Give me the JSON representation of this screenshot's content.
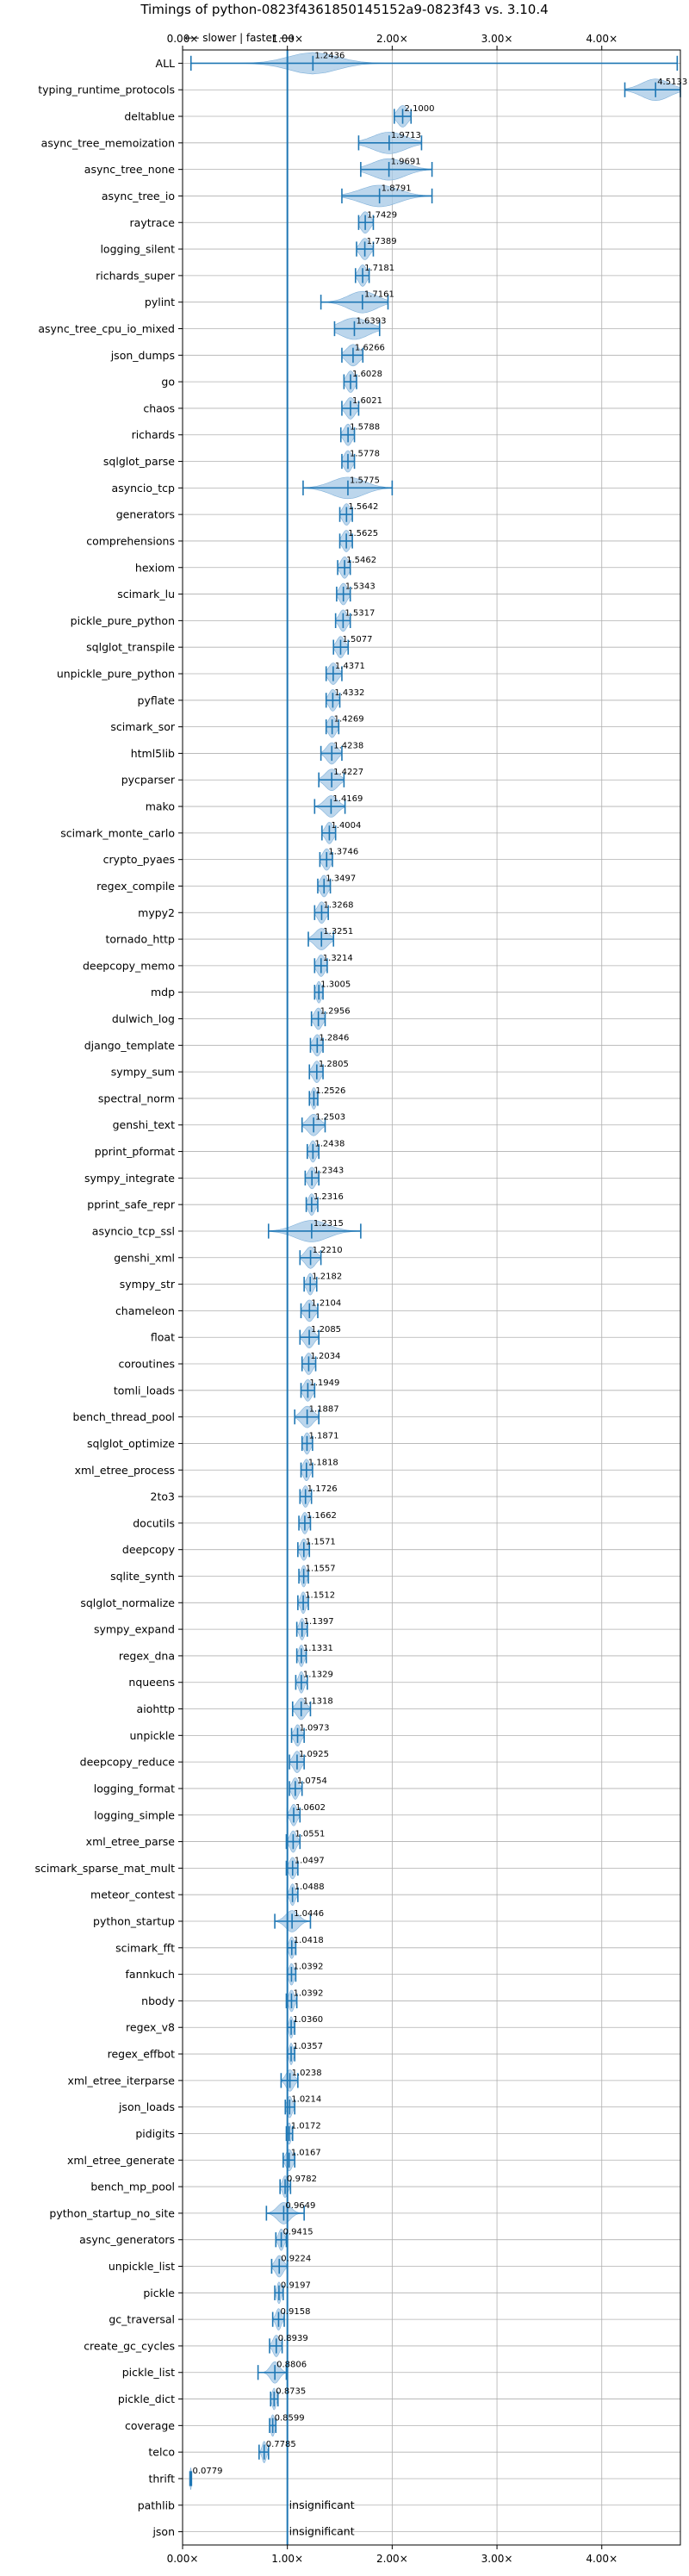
{
  "chart_data": {
    "type": "violin",
    "title": "Timings of python-0823f4361850145152a9-0823f43 vs. 3.10.4",
    "direction_label": "⟵ slower | faster ⟶",
    "xlim": [
      0,
      4.75
    ],
    "xticks": [
      0,
      1,
      2,
      3,
      4
    ],
    "xtick_labels": [
      "0.00×",
      "1.00×",
      "2.00×",
      "3.00×",
      "4.00×"
    ],
    "reference_line": 1.0,
    "grid": true,
    "benchmarks": [
      {
        "name": "ALL",
        "value": 1.2436,
        "label": "1.2436",
        "min": 0.08,
        "max": 4.72,
        "spread": 0.38
      },
      {
        "name": "typing_runtime_protocols",
        "value": 4.5133,
        "label": "4.5133",
        "min": 4.22,
        "max": 4.75,
        "spread": 0.22
      },
      {
        "name": "deltablue",
        "value": 2.1,
        "label": "2.1000",
        "min": 2.02,
        "max": 2.18,
        "spread": 0.08
      },
      {
        "name": "async_tree_memoization",
        "value": 1.9713,
        "label": "1.9713",
        "min": 1.68,
        "max": 2.28,
        "spread": 0.26
      },
      {
        "name": "async_tree_none",
        "value": 1.9691,
        "label": "1.9691",
        "min": 1.7,
        "max": 2.38,
        "spread": 0.26
      },
      {
        "name": "async_tree_io",
        "value": 1.8791,
        "label": "1.8791",
        "min": 1.52,
        "max": 2.38,
        "spread": 0.3
      },
      {
        "name": "raytrace",
        "value": 1.7429,
        "label": "1.7429",
        "min": 1.68,
        "max": 1.82,
        "spread": 0.07
      },
      {
        "name": "logging_silent",
        "value": 1.7389,
        "label": "1.7389",
        "min": 1.66,
        "max": 1.82,
        "spread": 0.07
      },
      {
        "name": "richards_super",
        "value": 1.7181,
        "label": "1.7181",
        "min": 1.65,
        "max": 1.78,
        "spread": 0.06
      },
      {
        "name": "pylint",
        "value": 1.7161,
        "label": "1.7161",
        "min": 1.32,
        "max": 1.96,
        "spread": 0.22
      },
      {
        "name": "async_tree_cpu_io_mixed",
        "value": 1.6393,
        "label": "1.6393",
        "min": 1.45,
        "max": 1.88,
        "spread": 0.22
      },
      {
        "name": "json_dumps",
        "value": 1.6266,
        "label": "1.6266",
        "min": 1.52,
        "max": 1.72,
        "spread": 0.1
      },
      {
        "name": "go",
        "value": 1.6028,
        "label": "1.6028",
        "min": 1.54,
        "max": 1.66,
        "spread": 0.06
      },
      {
        "name": "chaos",
        "value": 1.6021,
        "label": "1.6021",
        "min": 1.52,
        "max": 1.68,
        "spread": 0.07
      },
      {
        "name": "richards",
        "value": 1.5788,
        "label": "1.5788",
        "min": 1.51,
        "max": 1.64,
        "spread": 0.06
      },
      {
        "name": "sqlglot_parse",
        "value": 1.5778,
        "label": "1.5778",
        "min": 1.52,
        "max": 1.64,
        "spread": 0.06
      },
      {
        "name": "asyncio_tcp",
        "value": 1.5775,
        "label": "1.5775",
        "min": 1.15,
        "max": 2.0,
        "spread": 0.26
      },
      {
        "name": "generators",
        "value": 1.5642,
        "label": "1.5642",
        "min": 1.5,
        "max": 1.62,
        "spread": 0.06
      },
      {
        "name": "comprehensions",
        "value": 1.5625,
        "label": "1.5625",
        "min": 1.5,
        "max": 1.62,
        "spread": 0.06
      },
      {
        "name": "hexiom",
        "value": 1.5462,
        "label": "1.5462",
        "min": 1.48,
        "max": 1.6,
        "spread": 0.06
      },
      {
        "name": "scimark_lu",
        "value": 1.5343,
        "label": "1.5343",
        "min": 1.47,
        "max": 1.6,
        "spread": 0.06
      },
      {
        "name": "pickle_pure_python",
        "value": 1.5317,
        "label": "1.5317",
        "min": 1.46,
        "max": 1.6,
        "spread": 0.06
      },
      {
        "name": "sqlglot_transpile",
        "value": 1.5077,
        "label": "1.5077",
        "min": 1.44,
        "max": 1.58,
        "spread": 0.06
      },
      {
        "name": "unpickle_pure_python",
        "value": 1.4371,
        "label": "1.4371",
        "min": 1.37,
        "max": 1.52,
        "spread": 0.07
      },
      {
        "name": "pyflate",
        "value": 1.4332,
        "label": "1.4332",
        "min": 1.37,
        "max": 1.5,
        "spread": 0.06
      },
      {
        "name": "scimark_sor",
        "value": 1.4269,
        "label": "1.4269",
        "min": 1.37,
        "max": 1.49,
        "spread": 0.06
      },
      {
        "name": "html5lib",
        "value": 1.4238,
        "label": "1.4238",
        "min": 1.32,
        "max": 1.52,
        "spread": 0.08
      },
      {
        "name": "pycparser",
        "value": 1.4227,
        "label": "1.4227",
        "min": 1.3,
        "max": 1.54,
        "spread": 0.1
      },
      {
        "name": "mako",
        "value": 1.4169,
        "label": "1.4169",
        "min": 1.26,
        "max": 1.55,
        "spread": 0.1
      },
      {
        "name": "scimark_monte_carlo",
        "value": 1.4004,
        "label": "1.4004",
        "min": 1.33,
        "max": 1.46,
        "spread": 0.06
      },
      {
        "name": "crypto_pyaes",
        "value": 1.3746,
        "label": "1.3746",
        "min": 1.31,
        "max": 1.43,
        "spread": 0.06
      },
      {
        "name": "regex_compile",
        "value": 1.3497,
        "label": "1.3497",
        "min": 1.29,
        "max": 1.41,
        "spread": 0.06
      },
      {
        "name": "mypy2",
        "value": 1.3268,
        "label": "1.3268",
        "min": 1.26,
        "max": 1.39,
        "spread": 0.06
      },
      {
        "name": "tornado_http",
        "value": 1.3251,
        "label": "1.3251",
        "min": 1.2,
        "max": 1.44,
        "spread": 0.1
      },
      {
        "name": "deepcopy_memo",
        "value": 1.3214,
        "label": "1.3214",
        "min": 1.26,
        "max": 1.38,
        "spread": 0.06
      },
      {
        "name": "mdp",
        "value": 1.3005,
        "label": "1.3005",
        "min": 1.26,
        "max": 1.34,
        "spread": 0.04
      },
      {
        "name": "dulwich_log",
        "value": 1.2956,
        "label": "1.2956",
        "min": 1.23,
        "max": 1.36,
        "spread": 0.06
      },
      {
        "name": "django_template",
        "value": 1.2846,
        "label": "1.2846",
        "min": 1.22,
        "max": 1.34,
        "spread": 0.06
      },
      {
        "name": "sympy_sum",
        "value": 1.2805,
        "label": "1.2805",
        "min": 1.21,
        "max": 1.34,
        "spread": 0.06
      },
      {
        "name": "spectral_norm",
        "value": 1.2526,
        "label": "1.2526",
        "min": 1.21,
        "max": 1.29,
        "spread": 0.04
      },
      {
        "name": "genshi_text",
        "value": 1.2503,
        "label": "1.2503",
        "min": 1.14,
        "max": 1.36,
        "spread": 0.09
      },
      {
        "name": "pprint_pformat",
        "value": 1.2438,
        "label": "1.2438",
        "min": 1.19,
        "max": 1.3,
        "spread": 0.05
      },
      {
        "name": "sympy_integrate",
        "value": 1.2343,
        "label": "1.2343",
        "min": 1.17,
        "max": 1.3,
        "spread": 0.06
      },
      {
        "name": "pprint_safe_repr",
        "value": 1.2316,
        "label": "1.2316",
        "min": 1.18,
        "max": 1.29,
        "spread": 0.05
      },
      {
        "name": "asyncio_tcp_ssl",
        "value": 1.2315,
        "label": "1.2315",
        "min": 0.82,
        "max": 1.7,
        "spread": 0.26
      },
      {
        "name": "genshi_xml",
        "value": 1.221,
        "label": "1.2210",
        "min": 1.12,
        "max": 1.32,
        "spread": 0.08
      },
      {
        "name": "sympy_str",
        "value": 1.2182,
        "label": "1.2182",
        "min": 1.16,
        "max": 1.28,
        "spread": 0.05
      },
      {
        "name": "chameleon",
        "value": 1.2104,
        "label": "1.2104",
        "min": 1.13,
        "max": 1.29,
        "spread": 0.07
      },
      {
        "name": "float",
        "value": 1.2085,
        "label": "1.2085",
        "min": 1.12,
        "max": 1.3,
        "spread": 0.07
      },
      {
        "name": "coroutines",
        "value": 1.2034,
        "label": "1.2034",
        "min": 1.14,
        "max": 1.27,
        "spread": 0.06
      },
      {
        "name": "tomli_loads",
        "value": 1.1949,
        "label": "1.1949",
        "min": 1.13,
        "max": 1.26,
        "spread": 0.06
      },
      {
        "name": "bench_thread_pool",
        "value": 1.1887,
        "label": "1.1887",
        "min": 1.07,
        "max": 1.3,
        "spread": 0.09
      },
      {
        "name": "sqlglot_optimize",
        "value": 1.1871,
        "label": "1.1871",
        "min": 1.14,
        "max": 1.24,
        "spread": 0.05
      },
      {
        "name": "xml_etree_process",
        "value": 1.1818,
        "label": "1.1818",
        "min": 1.13,
        "max": 1.24,
        "spread": 0.05
      },
      {
        "name": "2to3",
        "value": 1.1726,
        "label": "1.1726",
        "min": 1.12,
        "max": 1.23,
        "spread": 0.05
      },
      {
        "name": "docutils",
        "value": 1.1662,
        "label": "1.1662",
        "min": 1.11,
        "max": 1.22,
        "spread": 0.05
      },
      {
        "name": "deepcopy",
        "value": 1.1571,
        "label": "1.1571",
        "min": 1.1,
        "max": 1.21,
        "spread": 0.05
      },
      {
        "name": "sqlite_synth",
        "value": 1.1557,
        "label": "1.1557",
        "min": 1.11,
        "max": 1.2,
        "spread": 0.04
      },
      {
        "name": "sqlglot_normalize",
        "value": 1.1512,
        "label": "1.1512",
        "min": 1.1,
        "max": 1.2,
        "spread": 0.04
      },
      {
        "name": "sympy_expand",
        "value": 1.1397,
        "label": "1.1397",
        "min": 1.09,
        "max": 1.19,
        "spread": 0.04
      },
      {
        "name": "regex_dna",
        "value": 1.1331,
        "label": "1.1331",
        "min": 1.09,
        "max": 1.18,
        "spread": 0.04
      },
      {
        "name": "nqueens",
        "value": 1.1329,
        "label": "1.1329",
        "min": 1.08,
        "max": 1.19,
        "spread": 0.04
      },
      {
        "name": "aiohttp",
        "value": 1.1318,
        "label": "1.1318",
        "min": 1.05,
        "max": 1.22,
        "spread": 0.07
      },
      {
        "name": "unpickle",
        "value": 1.0973,
        "label": "1.0973",
        "min": 1.04,
        "max": 1.16,
        "spread": 0.05
      },
      {
        "name": "deepcopy_reduce",
        "value": 1.0925,
        "label": "1.0925",
        "min": 1.02,
        "max": 1.16,
        "spread": 0.06
      },
      {
        "name": "logging_format",
        "value": 1.0754,
        "label": "1.0754",
        "min": 1.02,
        "max": 1.14,
        "spread": 0.05
      },
      {
        "name": "logging_simple",
        "value": 1.0602,
        "label": "1.0602",
        "min": 1.0,
        "max": 1.12,
        "spread": 0.05
      },
      {
        "name": "xml_etree_parse",
        "value": 1.0551,
        "label": "1.0551",
        "min": 0.99,
        "max": 1.12,
        "spread": 0.05
      },
      {
        "name": "scimark_sparse_mat_mult",
        "value": 1.0497,
        "label": "1.0497",
        "min": 0.99,
        "max": 1.1,
        "spread": 0.05
      },
      {
        "name": "meteor_contest",
        "value": 1.0488,
        "label": "1.0488",
        "min": 1.0,
        "max": 1.1,
        "spread": 0.04
      },
      {
        "name": "python_startup",
        "value": 1.0446,
        "label": "1.0446",
        "min": 0.88,
        "max": 1.22,
        "spread": 0.1
      },
      {
        "name": "scimark_fft",
        "value": 1.0418,
        "label": "1.0418",
        "min": 1.0,
        "max": 1.08,
        "spread": 0.04
      },
      {
        "name": "fannkuch",
        "value": 1.0392,
        "label": "1.0392",
        "min": 1.0,
        "max": 1.08,
        "spread": 0.04
      },
      {
        "name": "nbody",
        "value": 1.0392,
        "label": "1.0392",
        "min": 0.99,
        "max": 1.09,
        "spread": 0.04
      },
      {
        "name": "regex_v8",
        "value": 1.036,
        "label": "1.0360",
        "min": 1.0,
        "max": 1.07,
        "spread": 0.03
      },
      {
        "name": "regex_effbot",
        "value": 1.0357,
        "label": "1.0357",
        "min": 1.0,
        "max": 1.07,
        "spread": 0.03
      },
      {
        "name": "xml_etree_iterparse",
        "value": 1.0238,
        "label": "1.0238",
        "min": 0.94,
        "max": 1.1,
        "spread": 0.06
      },
      {
        "name": "json_loads",
        "value": 1.0214,
        "label": "1.0214",
        "min": 0.98,
        "max": 1.07,
        "spread": 0.04
      },
      {
        "name": "pidigits",
        "value": 1.0172,
        "label": "1.0172",
        "min": 0.99,
        "max": 1.05,
        "spread": 0.03
      },
      {
        "name": "xml_etree_generate",
        "value": 1.0167,
        "label": "1.0167",
        "min": 0.96,
        "max": 1.07,
        "spread": 0.05
      },
      {
        "name": "bench_mp_pool",
        "value": 0.9782,
        "label": "0.9782",
        "min": 0.93,
        "max": 1.03,
        "spread": 0.04
      },
      {
        "name": "python_startup_no_site",
        "value": 0.9649,
        "label": "0.9649",
        "min": 0.8,
        "max": 1.16,
        "spread": 0.1
      },
      {
        "name": "async_generators",
        "value": 0.9415,
        "label": "0.9415",
        "min": 0.89,
        "max": 0.99,
        "spread": 0.04
      },
      {
        "name": "unpickle_list",
        "value": 0.9224,
        "label": "0.9224",
        "min": 0.85,
        "max": 1.0,
        "spread": 0.06
      },
      {
        "name": "pickle",
        "value": 0.9197,
        "label": "0.9197",
        "min": 0.88,
        "max": 0.96,
        "spread": 0.03
      },
      {
        "name": "gc_traversal",
        "value": 0.9158,
        "label": "0.9158",
        "min": 0.86,
        "max": 0.97,
        "spread": 0.04
      },
      {
        "name": "create_gc_cycles",
        "value": 0.8939,
        "label": "0.8939",
        "min": 0.83,
        "max": 0.95,
        "spread": 0.05
      },
      {
        "name": "pickle_list",
        "value": 0.8806,
        "label": "0.8806",
        "min": 0.72,
        "max": 0.99,
        "spread": 0.07
      },
      {
        "name": "pickle_dict",
        "value": 0.8735,
        "label": "0.8735",
        "min": 0.84,
        "max": 0.91,
        "spread": 0.03
      },
      {
        "name": "coverage",
        "value": 0.8599,
        "label": "0.8599",
        "min": 0.83,
        "max": 0.89,
        "spread": 0.03
      },
      {
        "name": "telco",
        "value": 0.7785,
        "label": "0.7785",
        "min": 0.73,
        "max": 0.82,
        "spread": 0.03
      },
      {
        "name": "thrift",
        "value": 0.0779,
        "label": "0.0779",
        "min": 0.07,
        "max": 0.085,
        "spread": 0.01
      },
      {
        "name": "pathlib",
        "value": null,
        "label": "insignificant",
        "min": null,
        "max": null,
        "spread": null
      },
      {
        "name": "json",
        "value": null,
        "label": "insignificant",
        "min": null,
        "max": null,
        "spread": null
      }
    ]
  }
}
